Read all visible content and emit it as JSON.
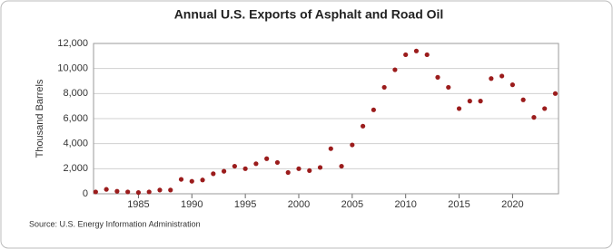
{
  "chart_data": {
    "type": "scatter",
    "title": "Annual U.S. Exports of Asphalt and Road Oil",
    "y_label": "Thousand Barrels",
    "source": "Source: U.S. Energy Information Administration",
    "x": [
      1981,
      1982,
      1983,
      1984,
      1985,
      1986,
      1987,
      1988,
      1989,
      1990,
      1991,
      1992,
      1993,
      1994,
      1995,
      1996,
      1997,
      1998,
      1999,
      2000,
      2001,
      2002,
      2003,
      2004,
      2005,
      2006,
      2007,
      2008,
      2009,
      2010,
      2011,
      2012,
      2013,
      2014,
      2015,
      2016,
      2017,
      2018,
      2019,
      2020,
      2021,
      2022,
      2023,
      2024
    ],
    "series": [
      {
        "name": "Exports",
        "color": "#9b1c1c",
        "values": [
          150,
          350,
          200,
          150,
          100,
          150,
          300,
          300,
          1150,
          1000,
          1100,
          1600,
          1800,
          2200,
          2000,
          2400,
          2800,
          2500,
          1700,
          2000,
          1850,
          2100,
          3600,
          2200,
          3900,
          5400,
          6700,
          8500,
          9900,
          11100,
          11400,
          11100,
          9300,
          8500,
          6800,
          7400,
          7400,
          9200,
          9400,
          8700,
          7500,
          6100,
          6800,
          8000
        ]
      }
    ],
    "xlim": [
      1980.8,
      2024.3
    ],
    "xticks": [
      1985,
      1990,
      1995,
      2000,
      2005,
      2010,
      2015,
      2020
    ],
    "ylim": [
      0,
      12000
    ],
    "yticks": [
      0,
      {
        "value": 2000,
        "label": "2,000"
      },
      {
        "value": 4000,
        "label": "4,000"
      },
      {
        "value": 6000,
        "label": "6,000"
      },
      {
        "value": 8000,
        "label": "8,000"
      },
      {
        "value": 10000,
        "label": "10,000"
      },
      {
        "value": 12000,
        "label": "12,000"
      }
    ],
    "grid": true
  }
}
